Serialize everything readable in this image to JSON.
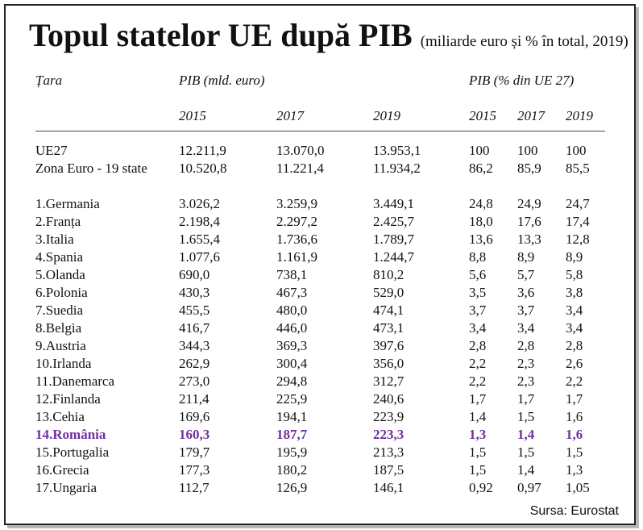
{
  "title": "Topul statelor UE după PIB",
  "subtitle": "(miliarde euro și % în total, 2019)",
  "headers": {
    "country": "Țara",
    "gdp_group": "PIB (mld. euro)",
    "pct_group": "PIB (% din UE 27)",
    "years": [
      "2015",
      "2017",
      "2019",
      "2015",
      "2017",
      "2019"
    ]
  },
  "summary_rows": [
    {
      "name": "UE27",
      "gdp": [
        "12.211,9",
        "13.070,0",
        "13.953,1"
      ],
      "pct": [
        "100",
        "100",
        "100"
      ]
    },
    {
      "name": "Zona Euro - 19 state",
      "gdp": [
        "10.520,8",
        "11.221,4",
        "11.934,2"
      ],
      "pct": [
        "86,2",
        "85,9",
        "85,5"
      ]
    }
  ],
  "rows": [
    {
      "name": "1.Germania",
      "gdp": [
        "3.026,2",
        "3.259,9",
        "3.449,1"
      ],
      "pct": [
        "24,8",
        "24,9",
        "24,7"
      ]
    },
    {
      "name": "2.Franța",
      "gdp": [
        "2.198,4",
        "2.297,2",
        "2.425,7"
      ],
      "pct": [
        "18,0",
        "17,6",
        "17,4"
      ]
    },
    {
      "name": "3.Italia",
      "gdp": [
        "1.655,4",
        "1.736,6",
        "1.789,7"
      ],
      "pct": [
        "13,6",
        "13,3",
        "12,8"
      ]
    },
    {
      "name": "4.Spania",
      "gdp": [
        "1.077,6",
        "1.161,9",
        "1.244,7"
      ],
      "pct": [
        "8,8",
        "8,9",
        "8,9"
      ]
    },
    {
      "name": "5.Olanda",
      "gdp": [
        "690,0",
        "738,1",
        "810,2"
      ],
      "pct": [
        "5,6",
        "5,7",
        "5,8"
      ]
    },
    {
      "name": "6.Polonia",
      "gdp": [
        "430,3",
        "467,3",
        "529,0"
      ],
      "pct": [
        "3,5",
        "3,6",
        "3,8"
      ]
    },
    {
      "name": "7.Suedia",
      "gdp": [
        "455,5",
        "480,0",
        "474,1"
      ],
      "pct": [
        "3,7",
        "3,7",
        "3,4"
      ]
    },
    {
      "name": "8.Belgia",
      "gdp": [
        "416,7",
        "446,0",
        "473,1"
      ],
      "pct": [
        "3,4",
        "3,4",
        "3,4"
      ]
    },
    {
      "name": "9.Austria",
      "gdp": [
        "344,3",
        "369,3",
        "397,6"
      ],
      "pct": [
        "2,8",
        "2,8",
        "2,8"
      ]
    },
    {
      "name": "10.Irlanda",
      "gdp": [
        "262,9",
        "300,4",
        "356,0"
      ],
      "pct": [
        "2,2",
        "2,3",
        "2,6"
      ]
    },
    {
      "name": "11.Danemarca",
      "gdp": [
        "273,0",
        "294,8",
        "312,7"
      ],
      "pct": [
        "2,2",
        "2,3",
        "2,2"
      ]
    },
    {
      "name": "12.Finlanda",
      "gdp": [
        "211,4",
        "225,9",
        "240,6"
      ],
      "pct": [
        "1,7",
        "1,7",
        "1,7"
      ]
    },
    {
      "name": "13.Cehia",
      "gdp": [
        "169,6",
        "194,1",
        "223,9"
      ],
      "pct": [
        "1,4",
        "1,5",
        "1,6"
      ]
    },
    {
      "name": "14.România",
      "gdp": [
        "160,3",
        "187,7",
        "223,3"
      ],
      "pct": [
        "1,3",
        "1,4",
        "1,6"
      ],
      "highlight": true
    },
    {
      "name": "15.Portugalia",
      "gdp": [
        "179,7",
        "195,9",
        "213,3"
      ],
      "pct": [
        "1,5",
        "1,5",
        "1,5"
      ]
    },
    {
      "name": "16.Grecia",
      "gdp": [
        "177,3",
        "180,2",
        "187,5"
      ],
      "pct": [
        "1,5",
        "1,4",
        "1,3"
      ]
    },
    {
      "name": "17.Ungaria",
      "gdp": [
        "112,7",
        "126,9",
        "146,1"
      ],
      "pct": [
        "0,92",
        "0,97",
        "1,05"
      ]
    }
  ],
  "source": "Sursa: Eurostat",
  "colors": {
    "highlight": "#7030a0",
    "text": "#111111"
  }
}
